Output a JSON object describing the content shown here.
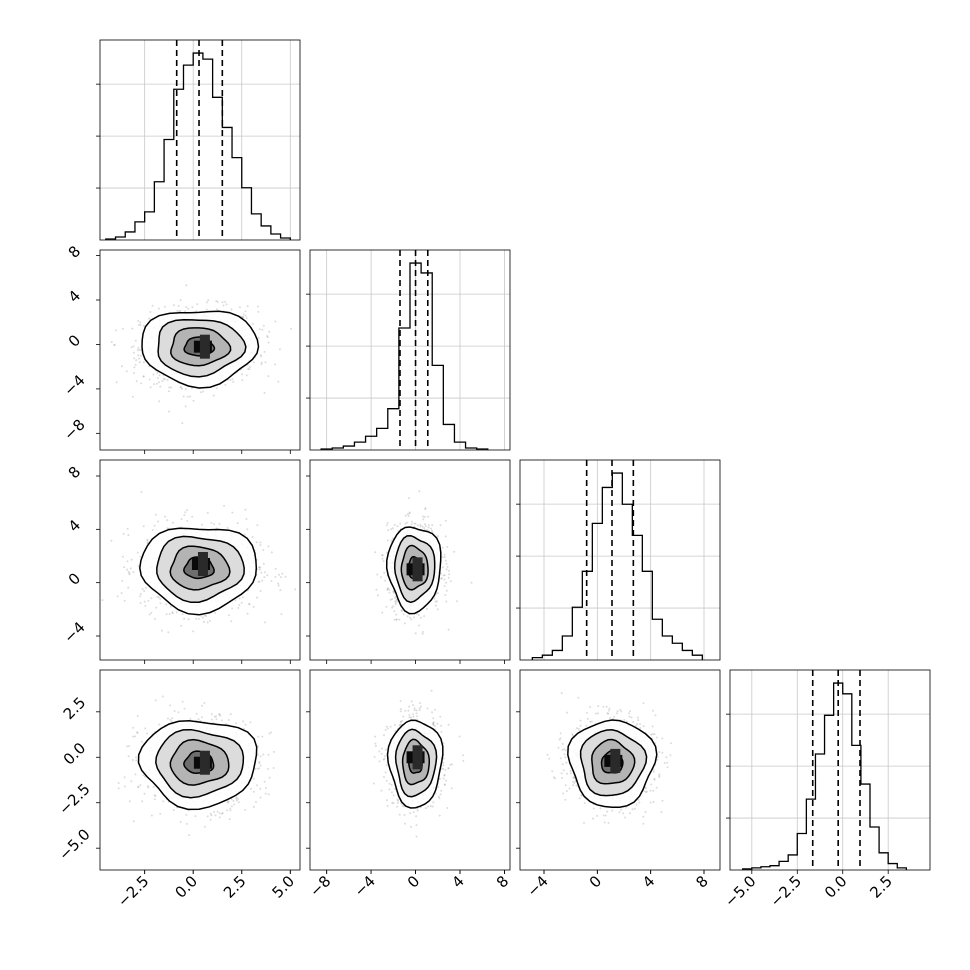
{
  "chart_data": {
    "type": "corner",
    "title": "",
    "grid": true,
    "parameters": [
      "",
      "",
      "",
      ""
    ],
    "quantile_lines": [
      {
        "param": 0,
        "values": [
          -0.85,
          0.3,
          1.5
        ]
      },
      {
        "param": 1,
        "values": [
          -1.4,
          0.0,
          1.1
        ]
      },
      {
        "param": 2,
        "values": [
          -0.8,
          1.1,
          2.7
        ]
      },
      {
        "param": 3,
        "values": [
          -1.65,
          -0.25,
          0.95
        ]
      }
    ],
    "axes": [
      {
        "param": 0,
        "range": [
          -4.8,
          5.5
        ],
        "ticks": [
          -2.5,
          0.0,
          2.5,
          5.0
        ],
        "tick_labels": [
          "−2.5",
          "0.0",
          "2.5",
          "5.0"
        ]
      },
      {
        "param": 1,
        "range": [
          -9.5,
          8.5
        ],
        "ticks": [
          -8,
          -4,
          0,
          4,
          8
        ],
        "tick_labels": [
          "−8",
          "−4",
          "0",
          "4",
          "8"
        ]
      },
      {
        "param": 2,
        "range": [
          -5.8,
          9.2
        ],
        "ticks": [
          -4,
          0,
          4,
          8
        ],
        "tick_labels": [
          "−4",
          "0",
          "4",
          "8"
        ]
      },
      {
        "param": 3,
        "range": [
          -6.2,
          4.8
        ],
        "ticks": [
          -5.0,
          -2.5,
          0.0,
          2.5
        ],
        "tick_labels": [
          "−5.0",
          "−2.5",
          "0.0",
          "2.5"
        ]
      }
    ],
    "histograms": [
      {
        "param": 0,
        "bin_centers": [
          -4.25,
          -3.75,
          -3.25,
          -2.75,
          -2.25,
          -1.75,
          -1.25,
          -0.75,
          -0.25,
          0.25,
          0.75,
          1.25,
          1.75,
          2.25,
          2.75,
          3.25,
          3.75,
          4.25,
          4.75
        ],
        "values": [
          0.5,
          1.5,
          4,
          9,
          14,
          29,
          50,
          75,
          87,
          93,
          90,
          71,
          56,
          41,
          26,
          13,
          7,
          3,
          1
        ]
      },
      {
        "param": 1,
        "bin_centers": [
          -8,
          -7,
          -6,
          -5,
          -4,
          -3,
          -2,
          -1,
          0,
          1,
          2,
          3,
          4,
          5,
          6
        ],
        "values": [
          0.5,
          1,
          2,
          4,
          7,
          11,
          21,
          62,
          95,
          90,
          43,
          13,
          4,
          1,
          0.5
        ]
      },
      {
        "param": 2,
        "bin_centers": [
          -4.5,
          -3.75,
          -3.0,
          -2.25,
          -1.5,
          -0.75,
          0,
          0.75,
          1.5,
          2.25,
          3.0,
          3.75,
          4.5,
          5.25,
          6.0,
          6.75,
          7.5
        ],
        "values": [
          1,
          2,
          4,
          10,
          22,
          37,
          57,
          72,
          78,
          65,
          52,
          37,
          17,
          10,
          7,
          4,
          2
        ]
      },
      {
        "param": 3,
        "bin_centers": [
          -5.25,
          -4.75,
          -4.25,
          -3.75,
          -3.25,
          -2.75,
          -2.25,
          -1.75,
          -1.25,
          -0.75,
          -0.25,
          0.25,
          0.75,
          1.25,
          1.75,
          2.25,
          2.75,
          3.25
        ],
        "values": [
          0.5,
          1,
          1.5,
          2,
          4,
          7,
          17,
          33,
          54,
          72,
          87,
          82,
          58,
          40,
          20,
          8,
          3,
          1
        ]
      }
    ],
    "joint": [
      {
        "x_param": 0,
        "y_param": 1,
        "center": [
          0.3,
          -0.2
        ],
        "sigma": [
          1.5,
          1.7
        ],
        "rho": 0.05,
        "peak": [
          0.5,
          -0.2
        ]
      },
      {
        "x_param": 0,
        "y_param": 2,
        "center": [
          0.3,
          1.1
        ],
        "sigma": [
          1.5,
          1.6
        ],
        "rho": 0.0,
        "peak": [
          0.4,
          1.4
        ]
      },
      {
        "x_param": 1,
        "y_param": 2,
        "center": [
          -0.1,
          1.1
        ],
        "sigma": [
          1.2,
          1.6
        ],
        "rho": 0.05,
        "peak": [
          0.0,
          1.0
        ]
      },
      {
        "x_param": 0,
        "y_param": 3,
        "center": [
          0.3,
          -0.3
        ],
        "sigma": [
          1.5,
          1.2
        ],
        "rho": 0.0,
        "peak": [
          0.5,
          -0.3
        ]
      },
      {
        "x_param": 1,
        "y_param": 3,
        "center": [
          0.0,
          -0.3
        ],
        "sigma": [
          1.2,
          1.2
        ],
        "rho": 0.0,
        "peak": [
          0.0,
          0.0
        ]
      },
      {
        "x_param": 2,
        "y_param": 3,
        "center": [
          1.1,
          -0.3
        ],
        "sigma": [
          1.6,
          1.2
        ],
        "rho": 0.0,
        "peak": [
          1.2,
          -0.2
        ]
      }
    ]
  }
}
